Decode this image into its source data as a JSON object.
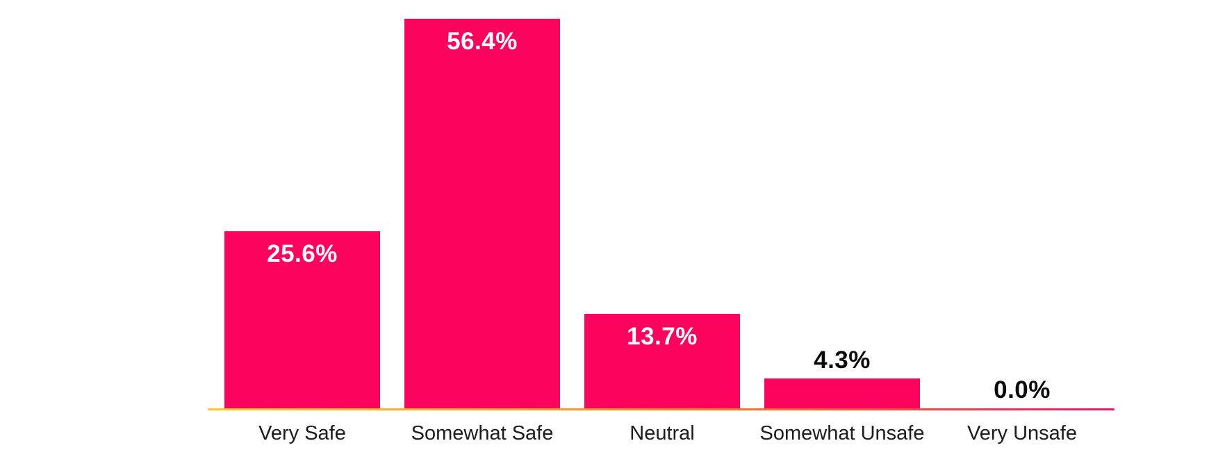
{
  "chart_data": {
    "type": "bar",
    "title": "",
    "xlabel": "",
    "ylabel": "",
    "categories": [
      "Very Safe",
      "Somewhat Safe",
      "Neutral",
      "Somewhat Unsafe",
      "Very Unsafe"
    ],
    "values": [
      25.6,
      56.4,
      13.7,
      4.3,
      0.0
    ],
    "value_labels": [
      "25.6%",
      "56.4%",
      "13.7%",
      "4.3%",
      "0.0%"
    ],
    "ylim": [
      0,
      56.4
    ],
    "grid": false,
    "legend": false,
    "bar_color": "#FC045E",
    "value_label_color_inside": "#FFFFFF",
    "value_label_color_outside": "#0A0A0A",
    "category_label_color": "#1C1C1C",
    "axis_line_gradient": [
      "#FFC72E",
      "#FBA127",
      "#F96E28",
      "#F3136B"
    ]
  }
}
